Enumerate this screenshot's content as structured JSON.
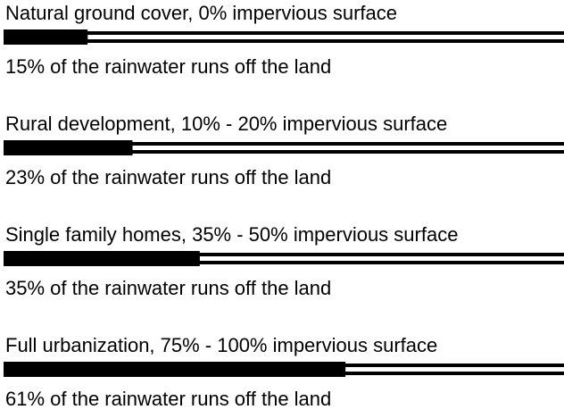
{
  "chart_data": {
    "type": "bar",
    "categories": [
      "Natural ground cover, 0% impervious surface",
      "Rural development, 10% - 20% impervious surface",
      "Single family homes, 35% - 50% impervious surface",
      "Full urbanization, 75% - 100% impervious surface"
    ],
    "values": [
      15,
      23,
      35,
      61
    ],
    "value_labels": [
      "15% of the rainwater runs off the land",
      "23% of the rainwater runs off the land",
      "35% of the rainwater runs off the land",
      "61% of the rainwater runs off the land"
    ],
    "xlim": [
      0,
      100
    ],
    "color": "#000000"
  }
}
